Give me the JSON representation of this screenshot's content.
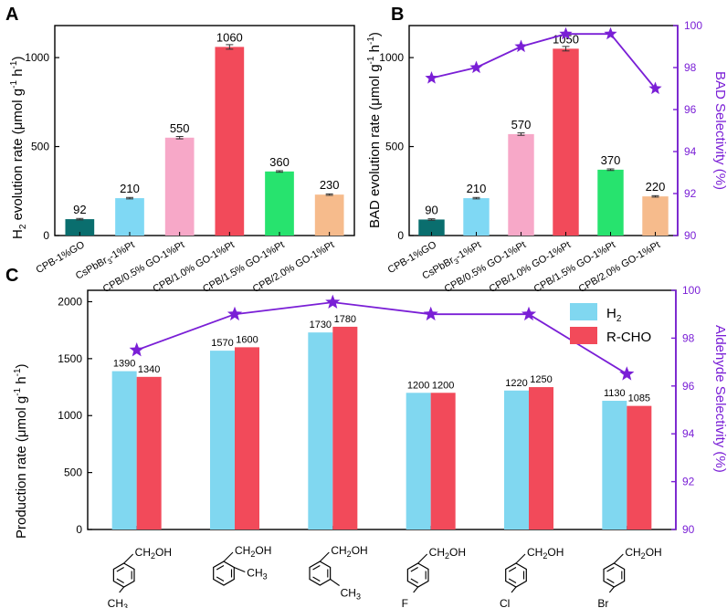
{
  "colors": {
    "selectivity": "#7a1fd6",
    "h2_series": "#80d7f0",
    "rcho_series": "#f24a5a",
    "bars": [
      "#0a6e6e",
      "#7fd8f4",
      "#f7a8c8",
      "#f24a5a",
      "#27e36e",
      "#f6bb8c"
    ]
  },
  "chart_data": [
    {
      "panel": "A",
      "type": "bar",
      "ylabel_main": "H",
      "ylabel_sub": "2",
      "ylabel_rest": " evolution rate (μmol g",
      "ylabel_sup1": "-1",
      "ylabel_mid": " h",
      "ylabel_sup2": "-1",
      "ylabel_end": ")",
      "ylim": [
        0,
        1180
      ],
      "yticks": [
        0,
        500,
        1000
      ],
      "categories": [
        "CPB-1%GO",
        "CsPbBr3-1%Pt",
        "CPB/0.5% GO-1%Pt",
        "CPB/1.0% GO-1%Pt",
        "CPB/1.5% GO-1%Pt",
        "CPB/2.0% GO-1%Pt"
      ],
      "values": [
        92,
        210,
        550,
        1060,
        360,
        230
      ],
      "labels": [
        "92",
        "210",
        "550",
        "1060",
        "360",
        "230"
      ]
    },
    {
      "panel": "B",
      "type": "bar+line",
      "ylabel": "BAD evolution rate (μmol g",
      "ylabel_sup1": "-1",
      "ylabel_mid": " h",
      "ylabel_sup2": "-1",
      "ylabel_end": ")",
      "ylabel_right": "BAD Selectivity (%)",
      "ylim": [
        0,
        1180
      ],
      "yticks": [
        0,
        500,
        1000
      ],
      "ylim_right": [
        90,
        100
      ],
      "yticks_right": [
        90,
        92,
        94,
        96,
        98,
        100
      ],
      "categories": [
        "CPB-1%GO",
        "CsPbBr3-1%Pt",
        "CPB/0.5% GO-1%Pt",
        "CPB/1.0% GO-1%Pt",
        "CPB/1.5% GO-1%Pt",
        "CPB/2.0% GO-1%Pt"
      ],
      "values": [
        90,
        210,
        570,
        1050,
        370,
        220
      ],
      "labels": [
        "90",
        "210",
        "570",
        "1050",
        "370",
        "220"
      ],
      "selectivity": [
        97.5,
        98.0,
        99.0,
        99.6,
        99.6,
        97.0
      ]
    },
    {
      "panel": "C",
      "type": "grouped-bar+line",
      "ylabel": "Production rate (μmol g",
      "ylabel_sup1": "-1",
      "ylabel_mid": " h",
      "ylabel_sup2": "-1",
      "ylabel_end": ")",
      "ylabel_right": "Aldehyde Selectivity (%)",
      "ylim": [
        0,
        2100
      ],
      "yticks": [
        0,
        500,
        1000,
        1500,
        2000
      ],
      "ylim_right": [
        90,
        100
      ],
      "yticks_right": [
        90,
        92,
        94,
        96,
        98,
        100
      ],
      "legend": [
        "H2",
        "R-CHO"
      ],
      "series": [
        {
          "name": "H2",
          "values": [
            1390,
            1570,
            1730,
            1200,
            1220,
            1130
          ],
          "labels": [
            "1390",
            "1570",
            "1730",
            "1200",
            "1220",
            "1130"
          ]
        },
        {
          "name": "R-CHO",
          "values": [
            1340,
            1600,
            1780,
            1200,
            1250,
            1085
          ],
          "labels": [
            "1340",
            "1600",
            "1780",
            "1200",
            "1250",
            "1085"
          ]
        }
      ],
      "selectivity": [
        97.5,
        99.0,
        99.5,
        99.0,
        99.0,
        96.5
      ],
      "substituents": [
        "CH3",
        "CH3",
        "CH3",
        "F",
        "Cl",
        "Br"
      ],
      "alcohol_label": "CH2OH"
    }
  ]
}
